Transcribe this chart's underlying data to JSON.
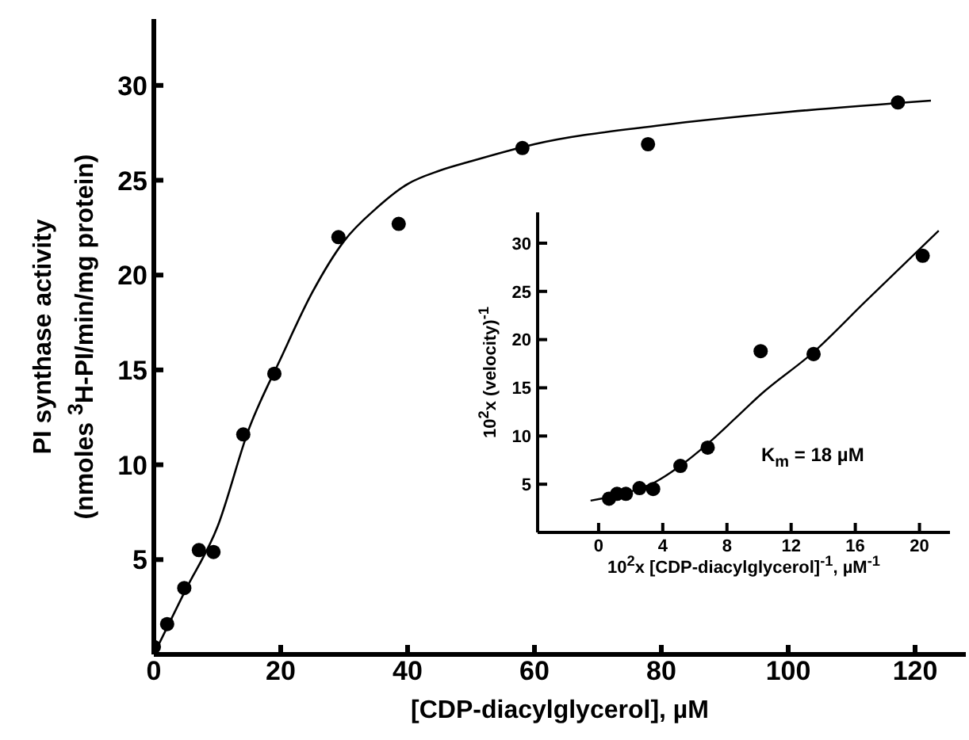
{
  "chart_data": [
    {
      "type": "scatter",
      "xlabel": "[CDP-diacylglycerol], µM",
      "ylabel": "PI synthase activity\n(nmoles $^{3}$H-PI/min/mg protein)",
      "xlim": [
        0,
        128
      ],
      "ylim": [
        0,
        33.5
      ],
      "xticks": [
        0,
        20,
        40,
        60,
        80,
        100,
        120
      ],
      "yticks": [
        5,
        10,
        15,
        20,
        25,
        30
      ],
      "grid": false,
      "series": [
        {
          "type": "scatter",
          "marker": "circle",
          "color": "#000000",
          "x": [
            0,
            2.1,
            4.8,
            7.1,
            9.4,
            14.1,
            19.0,
            29.1,
            38.6,
            58.1,
            77.9,
            117.3
          ],
          "values": [
            0.4,
            1.6,
            3.5,
            5.5,
            5.4,
            11.6,
            14.8,
            22.0,
            22.7,
            26.7,
            26.9,
            29.1
          ]
        },
        {
          "type": "line",
          "marker": "none",
          "color": "#000000",
          "x": [
            0,
            5,
            10,
            15,
            20,
            25,
            30,
            35,
            40,
            45,
            50,
            60,
            80,
            100,
            122.5
          ],
          "values": [
            0,
            3.4,
            6.7,
            11.9,
            15.6,
            19.1,
            21.8,
            23.5,
            24.8,
            25.5,
            26.0,
            26.9,
            27.9,
            28.6,
            29.2
          ]
        }
      ]
    },
    {
      "type": "scatter",
      "xlabel": "10$^{2}$x [CDP-diacylglycerol]$^{-1}$, µM$^{-1}$",
      "ylabel": "10$^{2}$x (velocity)$^{-1}$",
      "xlim": [
        -3.8,
        21.9
      ],
      "ylim": [
        0,
        33.2
      ],
      "xticks": [
        0,
        4,
        8,
        12,
        16,
        20
      ],
      "yticks": [
        5,
        10,
        15,
        20,
        25,
        30
      ],
      "grid": false,
      "annotations": [
        "K$_{m}$ = 18 µM"
      ],
      "series": [
        {
          "type": "scatter",
          "marker": "circle",
          "color": "#000000",
          "x": [
            0.65,
            1.15,
            1.7,
            2.55,
            3.4,
            5.1,
            6.8,
            10.1,
            13.4,
            20.2
          ],
          "values": [
            3.5,
            4.0,
            4.0,
            4.6,
            4.5,
            6.9,
            8.8,
            18.8,
            18.5,
            28.7
          ]
        },
        {
          "type": "line",
          "marker": "none",
          "color": "#000000",
          "x": [
            -0.5,
            1.5,
            3.5,
            5.0,
            6.8,
            8.5,
            10.1,
            13.4,
            16.6,
            21.2
          ],
          "values": [
            3.3,
            4.0,
            5.2,
            6.8,
            9.2,
            11.8,
            14.3,
            18.7,
            23.9,
            31.3
          ]
        }
      ]
    }
  ]
}
